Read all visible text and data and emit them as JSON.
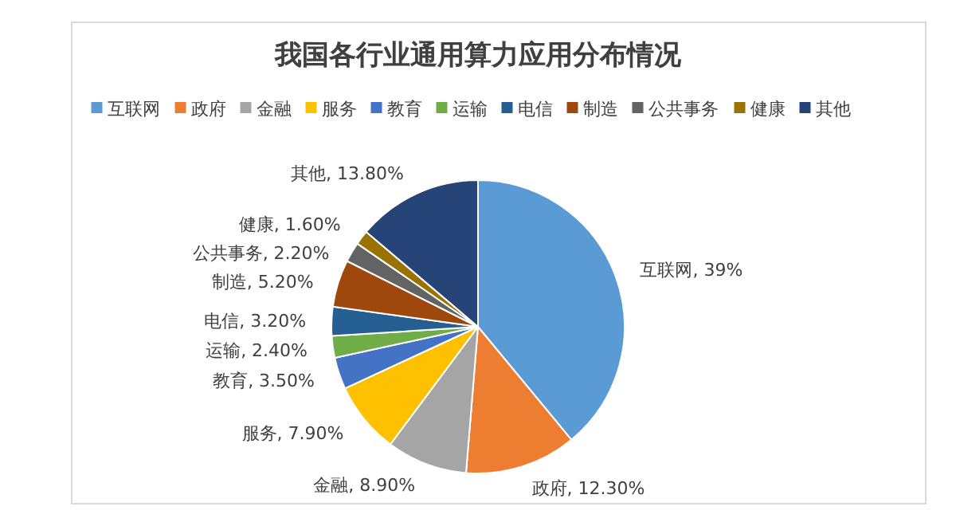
{
  "chart_data": {
    "type": "pie",
    "title": "我国各行业通用算力应用分布情况",
    "categories": [
      "互联网",
      "政府",
      "金融",
      "服务",
      "教育",
      "运输",
      "电信",
      "制造",
      "公共事务",
      "健康",
      "其他"
    ],
    "values": [
      39,
      12.3,
      8.9,
      7.9,
      3.5,
      2.4,
      3.2,
      5.2,
      2.2,
      1.6,
      13.8
    ],
    "value_labels": [
      "互联网, 39%",
      "政府, 12.30%",
      "金融, 8.90%",
      "服务, 7.90%",
      "教育, 3.50%",
      "运输, 2.40%",
      "电信, 3.20%",
      "制造, 5.20%",
      "公共事务, 2.20%",
      "健康, 1.60%",
      "其他, 13.80%"
    ],
    "colors": [
      "#5b9bd5",
      "#ed7d31",
      "#a5a5a5",
      "#ffc000",
      "#4472c4",
      "#70ad47",
      "#255e91",
      "#9e480e",
      "#636363",
      "#997300",
      "#264478"
    ],
    "legend": "top"
  }
}
